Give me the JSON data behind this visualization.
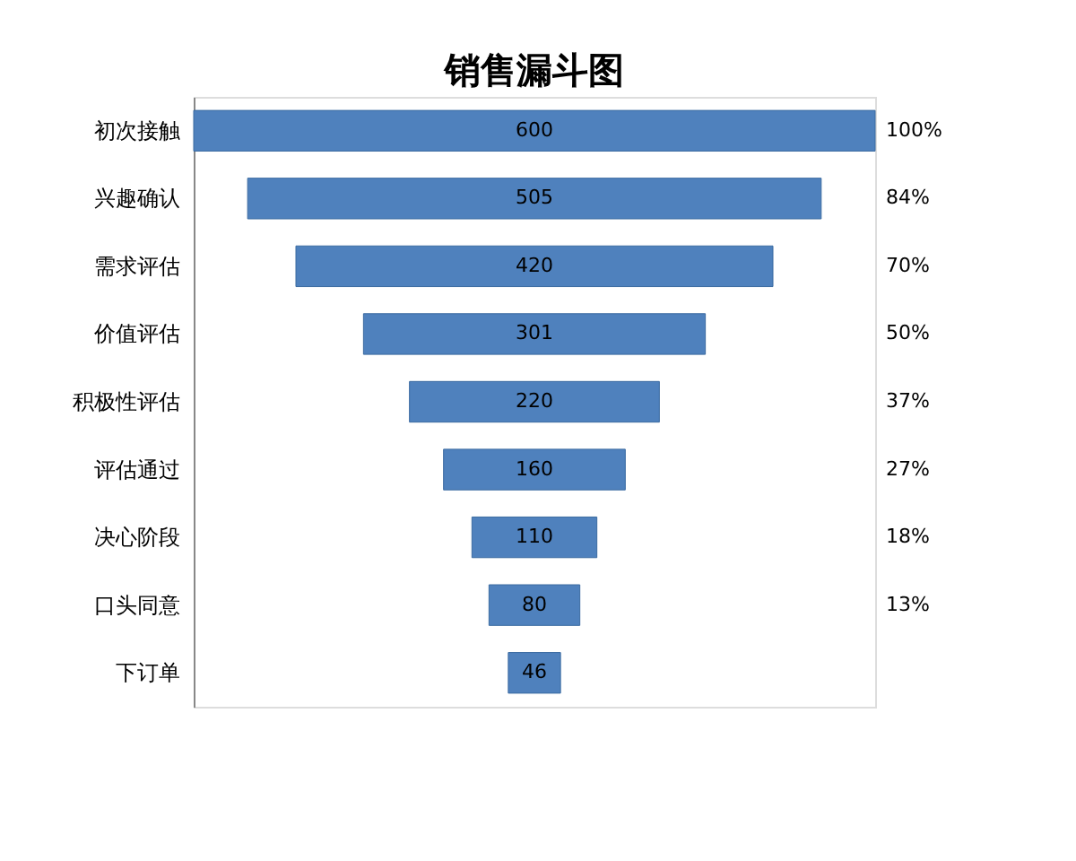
{
  "chart_data": {
    "type": "other",
    "title": "销售漏斗图",
    "categories": [
      "初次接触",
      "兴趣确认",
      "需求评估",
      "价值评估",
      "积极性评估",
      "评估通过",
      "决心阶段",
      "口头同意",
      "下订单"
    ],
    "values": [
      600,
      505,
      420,
      301,
      220,
      160,
      110,
      80,
      46
    ],
    "color": "#4f81bd",
    "data_labels": true,
    "annotations": [
      {
        "text": "100%",
        "y": "初次接触"
      },
      {
        "text": "84%",
        "y": "兴趣确认"
      },
      {
        "text": "70%",
        "y": "需求评估"
      },
      {
        "text": "50%",
        "y": "价值评估"
      },
      {
        "text": "37%",
        "y": "积极性评估"
      },
      {
        "text": "27%",
        "y": "评估通过"
      },
      {
        "text": "18%",
        "y": "决心阶段"
      },
      {
        "text": "13%",
        "y": "口头同意"
      }
    ]
  }
}
